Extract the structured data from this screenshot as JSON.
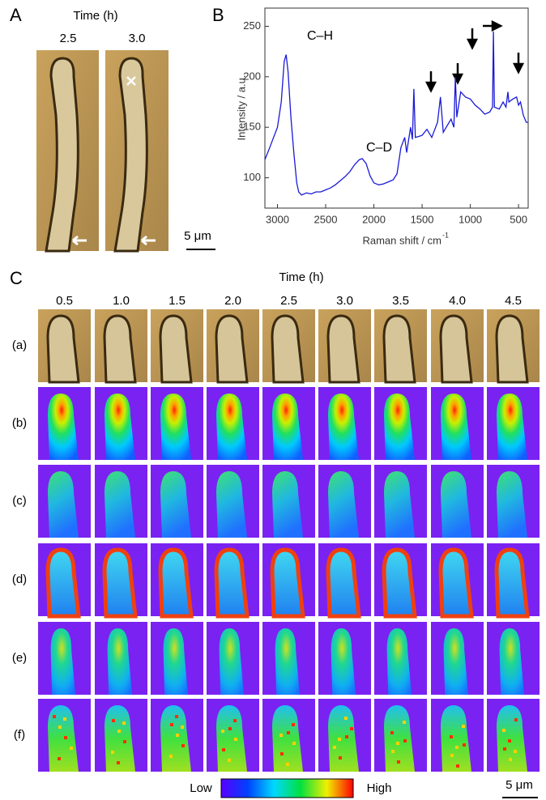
{
  "panel_a": {
    "label": "A",
    "time_title": "Time (h)",
    "times": [
      "2.5",
      "3.0"
    ],
    "scale_bar": "5 μm"
  },
  "chart_data": {
    "type": "line",
    "label": "B",
    "y_label": "Intensity / a.u.",
    "x_label": "Raman shift / cm",
    "x_label_sup": "-1",
    "annotations": [
      "C–H",
      "C–D"
    ],
    "color": "#1a1ad6",
    "xlim": [
      3130,
      400
    ],
    "ylim": [
      70,
      268
    ],
    "xticks": [
      3000,
      2500,
      2000,
      1500,
      1000,
      500
    ],
    "yticks": [
      100,
      150,
      200,
      250
    ],
    "x": [
      3130,
      3080,
      3040,
      3000,
      2960,
      2930,
      2910,
      2890,
      2860,
      2830,
      2800,
      2780,
      2750,
      2700,
      2650,
      2600,
      2550,
      2500,
      2450,
      2400,
      2350,
      2300,
      2250,
      2200,
      2150,
      2120,
      2080,
      2040,
      2000,
      1950,
      1900,
      1850,
      1800,
      1760,
      1720,
      1680,
      1660,
      1620,
      1600,
      1585,
      1570,
      1500,
      1450,
      1400,
      1340,
      1310,
      1280,
      1250,
      1200,
      1170,
      1155,
      1140,
      1100,
      1050,
      1000,
      950,
      900,
      850,
      800,
      770,
      760,
      750,
      700,
      660,
      630,
      610,
      600,
      560,
      520,
      500,
      480,
      450,
      420,
      400
    ],
    "values": [
      118,
      130,
      140,
      150,
      175,
      215,
      222,
      205,
      160,
      125,
      95,
      86,
      83,
      85,
      84,
      86,
      86,
      88,
      90,
      93,
      97,
      101,
      106,
      113,
      118,
      119,
      114,
      102,
      95,
      93,
      94,
      96,
      98,
      104,
      130,
      140,
      125,
      150,
      138,
      188,
      140,
      142,
      148,
      140,
      155,
      180,
      145,
      150,
      158,
      150,
      200,
      160,
      185,
      180,
      178,
      172,
      168,
      163,
      165,
      170,
      245,
      170,
      168,
      175,
      170,
      185,
      175,
      178,
      180,
      172,
      175,
      162,
      155,
      155
    ]
  },
  "panel_c": {
    "label": "C",
    "time_title": "Time (h)",
    "times": [
      "0.5",
      "1.0",
      "1.5",
      "2.0",
      "2.5",
      "3.0",
      "3.5",
      "4.0",
      "4.5"
    ],
    "rows": [
      "(a)",
      "(b)",
      "(c)",
      "(d)",
      "(e)",
      "(f)"
    ],
    "colorbar": {
      "low": "Low",
      "high": "High"
    },
    "scale_bar": "5 μm"
  }
}
